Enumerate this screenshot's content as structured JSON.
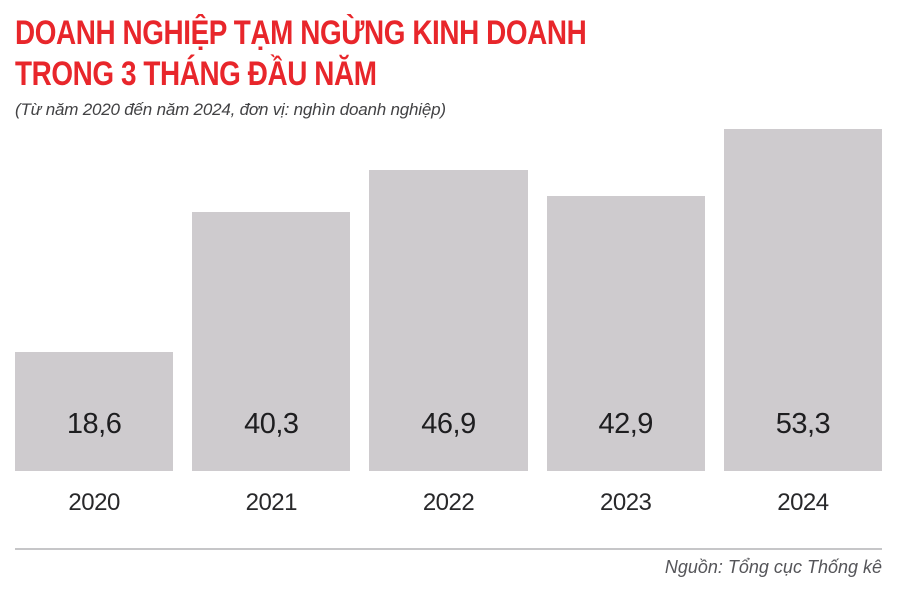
{
  "header": {
    "title_line1": "DOANH NGHIỆP TẠM NGỪNG KINH DOANH",
    "title_line2": "TRONG 3 THÁNG ĐẦU NĂM",
    "subtitle": "(Từ năm 2020 đến năm 2024, đơn vị: nghìn doanh nghiệp)"
  },
  "chart_data": {
    "type": "bar",
    "title": "DOANH NGHIỆP TẠM NGỪNG KINH DOANH TRONG 3 THÁNG ĐẦU NĂM",
    "subtitle": "(Từ năm 2020 đến năm 2024, đơn vị: nghìn doanh nghiệp)",
    "categories": [
      "2020",
      "2021",
      "2022",
      "2023",
      "2024"
    ],
    "values": [
      18.6,
      40.3,
      46.9,
      42.9,
      53.3
    ],
    "value_labels": [
      "18,6",
      "40,3",
      "46,9",
      "42,9",
      "53,3"
    ],
    "unit": "nghìn doanh nghiệp",
    "xlabel": "",
    "ylabel": "",
    "ylim": [
      0,
      53.3
    ],
    "grid": false,
    "legend": false,
    "bar_color": "#cecbce",
    "value_label_color": "#1e1e20"
  },
  "footer": {
    "source": "Nguồn: Tổng cục Thống kê"
  },
  "colors": {
    "title_red": "#e8262b",
    "bar_gray": "#cecbce",
    "divider_gray": "#c6c6c8",
    "source_gray": "#555559"
  }
}
